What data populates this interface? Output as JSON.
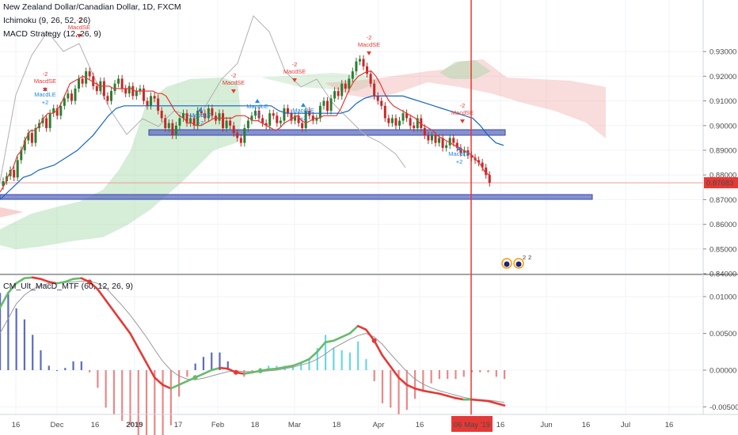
{
  "header": {
    "title": "New Zealand Dollar/Canadian Dollar, 1D, FXCM",
    "indicator_1": "Ichimoku (9, 26, 52, 26)",
    "indicator_2": "MACD Strategy (12, 26, 9)",
    "indicator_3": "CM_Ult_MacD_MTF (60, 12, 26, 9)"
  },
  "colors": {
    "candle_up": "#2e7d32",
    "candle_down": "#c62828",
    "conversion_line": "#e53935",
    "base_line": "#1565c0",
    "lagging_span": "#b0b0b0",
    "cloud_bull": "#a5d6a7",
    "cloud_bear": "#ef9a9a",
    "support_band": "#5c6bc0",
    "cursor": "#e53935",
    "signal_le": "#1e88e5",
    "signal_se": "#e53935",
    "macd_up": "#66bb6a",
    "macd_down": "#e53935",
    "macd_signal": "#999999"
  },
  "chart_data": [
    {
      "type": "candlestick",
      "name_label": "New Zealand Dollar/Canadian Dollar, 1D, FXCM",
      "y_ticks": [
        "0.93000",
        "0.92000",
        "0.91000",
        "0.90000",
        "0.89000",
        "0.88000",
        "0.87000",
        "0.86000",
        "0.85000",
        "0.84000"
      ],
      "y_range": [
        0.838,
        0.934
      ],
      "last_price": "0.87683",
      "close": [
        0.8775,
        0.8795,
        0.882,
        0.879,
        0.886,
        0.89,
        0.894,
        0.897,
        0.893,
        0.899,
        0.901,
        0.903,
        0.899,
        0.905,
        0.907,
        0.904,
        0.908,
        0.911,
        0.913,
        0.91,
        0.915,
        0.919,
        0.917,
        0.922,
        0.92,
        0.916,
        0.914,
        0.918,
        0.912,
        0.91,
        0.914,
        0.917,
        0.919,
        0.915,
        0.913,
        0.916,
        0.912,
        0.914,
        0.915,
        0.91,
        0.908,
        0.912,
        0.911,
        0.906,
        0.903,
        0.899,
        0.901,
        0.896,
        0.9,
        0.903,
        0.905,
        0.901,
        0.903,
        0.9,
        0.906,
        0.905,
        0.903,
        0.907,
        0.904,
        0.902,
        0.905,
        0.899,
        0.902,
        0.9,
        0.897,
        0.895,
        0.893,
        0.899,
        0.902,
        0.904,
        0.906,
        0.903,
        0.901,
        0.9,
        0.905,
        0.904,
        0.901,
        0.902,
        0.907,
        0.905,
        0.902,
        0.904,
        0.901,
        0.899,
        0.906,
        0.904,
        0.902,
        0.903,
        0.908,
        0.91,
        0.906,
        0.911,
        0.914,
        0.912,
        0.917,
        0.915,
        0.919,
        0.922,
        0.926,
        0.927,
        0.924,
        0.921,
        0.917,
        0.912,
        0.91,
        0.908,
        0.903,
        0.901,
        0.903,
        0.9,
        0.902,
        0.905,
        0.903,
        0.9,
        0.899,
        0.903,
        0.899,
        0.896,
        0.894,
        0.896,
        0.893,
        0.895,
        0.891,
        0.892,
        0.895,
        0.893,
        0.891,
        0.889,
        0.89,
        0.888,
        0.887,
        0.886,
        0.885,
        0.883,
        0.88,
        0.8768
      ],
      "conversion_line": [
        0.873,
        0.876,
        0.88,
        0.883,
        0.888,
        0.89,
        0.895,
        0.898,
        0.898,
        0.9,
        0.903,
        0.905,
        0.905,
        0.906,
        0.909,
        0.913,
        0.917,
        0.918,
        0.919,
        0.92,
        0.919,
        0.918,
        0.917,
        0.916,
        0.916,
        0.916,
        0.915,
        0.915,
        0.915,
        0.915,
        0.915,
        0.914,
        0.914,
        0.914,
        0.914,
        0.914,
        0.913,
        0.913,
        0.912,
        0.909,
        0.906,
        0.904,
        0.903,
        0.901,
        0.901,
        0.9,
        0.9,
        0.901,
        0.902,
        0.903,
        0.903,
        0.903,
        0.903,
        0.903,
        0.904,
        0.904,
        0.904,
        0.903,
        0.902,
        0.902,
        0.901,
        0.9,
        0.899,
        0.898,
        0.899,
        0.901,
        0.902,
        0.903,
        0.904,
        0.902,
        0.901,
        0.902,
        0.903,
        0.903,
        0.904,
        0.904,
        0.904,
        0.904,
        0.907,
        0.911,
        0.915,
        0.918,
        0.92,
        0.921,
        0.922,
        0.922,
        0.92,
        0.917,
        0.913,
        0.91,
        0.908,
        0.907,
        0.906,
        0.905,
        0.904,
        0.903,
        0.901,
        0.9,
        0.899,
        0.898,
        0.896,
        0.895,
        0.894,
        0.893,
        0.892,
        0.891,
        0.89,
        0.889,
        0.888,
        0.886,
        0.884,
        0.881,
        0.88
      ],
      "base_line": [
        0.87,
        0.873,
        0.876,
        0.879,
        0.88,
        0.882,
        0.883,
        0.884,
        0.886,
        0.888,
        0.89,
        0.893,
        0.896,
        0.9,
        0.904,
        0.907,
        0.908,
        0.908,
        0.908,
        0.908,
        0.908,
        0.908,
        0.908,
        0.908,
        0.908,
        0.908,
        0.908,
        0.908,
        0.908,
        0.908,
        0.908,
        0.908,
        0.908,
        0.908,
        0.908,
        0.908,
        0.906,
        0.905,
        0.905,
        0.905,
        0.905,
        0.905,
        0.905,
        0.905,
        0.905,
        0.906,
        0.909,
        0.911,
        0.912,
        0.912,
        0.912,
        0.912,
        0.912,
        0.911,
        0.91,
        0.909,
        0.908,
        0.907,
        0.906,
        0.905,
        0.904,
        0.903,
        0.9,
        0.896,
        0.893,
        0.892
      ]
    },
    {
      "type": "macd",
      "name_label": "CM_Ult_MacD_MTF (60, 12, 26, 9)",
      "y_ticks": [
        "0.01000",
        "0.00500",
        "0.00000",
        "-0.00500"
      ],
      "y_range": [
        -0.0062,
        0.0145
      ],
      "macd": [
        0.0085,
        0.0105,
        0.0118,
        0.0125,
        0.0126,
        0.0124,
        0.012,
        0.0118,
        0.012,
        0.0124,
        0.0125,
        0.012,
        0.011,
        0.0095,
        0.008,
        0.0065,
        0.005,
        0.003,
        0.001,
        -0.001,
        -0.002,
        -0.0025,
        -0.002,
        -0.0015,
        -0.001,
        -0.0005,
        0.0,
        0.0003,
        0.0002,
        -0.0003,
        -0.0005,
        -0.0003,
        -0.0001,
        0.0001,
        0.0002,
        0.0004,
        0.0006,
        0.001,
        0.0015,
        0.0025,
        0.0038,
        0.004,
        0.0045,
        0.005,
        0.006,
        0.0055,
        0.004,
        0.002,
        0.0005,
        -0.001,
        -0.002,
        -0.0025,
        -0.0028,
        -0.003,
        -0.0032,
        -0.0035,
        -0.0038,
        -0.004,
        -0.004,
        -0.0041,
        -0.0042,
        -0.0045,
        -0.0048
      ],
      "signal": [
        0.005,
        0.007,
        0.009,
        0.0102,
        0.011,
        0.0115,
        0.0118,
        0.0118,
        0.0119,
        0.012,
        0.0121,
        0.0121,
        0.0118,
        0.0112,
        0.01,
        0.0088,
        0.0075,
        0.006,
        0.0045,
        0.0028,
        0.0012,
        0.0,
        -0.0008,
        -0.0012,
        -0.0013,
        -0.0011,
        -0.0008,
        -0.0005,
        -0.0002,
        -0.0001,
        -0.0002,
        -0.0002,
        -0.0002,
        -0.0001,
        0.0,
        0.0002,
        0.0004,
        0.0007,
        0.001,
        0.0015,
        0.0022,
        0.003,
        0.0036,
        0.0042,
        0.0047,
        0.005,
        0.0045,
        0.0035,
        0.0022,
        0.001,
        -0.0002,
        -0.0012,
        -0.0019,
        -0.0024,
        -0.0028,
        -0.0031,
        -0.0034,
        -0.0037,
        -0.0039,
        -0.004,
        -0.0041,
        -0.0042,
        -0.0044
      ]
    }
  ],
  "signals": {
    "macd_le": "MacdLE",
    "macd_se": "MacdSE",
    "plus2": "+2",
    "minus2": "-2",
    "macd_le_x": [
      "Nov 26",
      "Jan 22",
      "Feb 14",
      "Mar 4",
      "Mar 6",
      "May 3"
    ],
    "macd_se_x": [
      "Nov 27",
      "Dec 7",
      "Feb 12",
      "Feb 20",
      "Mar 3",
      "Mar 29",
      "May 1"
    ]
  },
  "x_axis_labels": [
    "16",
    "Dec",
    "16",
    "2019",
    "17",
    "Feb",
    "18",
    "Mar",
    "18",
    "Apr",
    "16",
    "16",
    "Jun",
    "16",
    "Jul",
    "16"
  ],
  "cursor": {
    "date_label": "06 May '19"
  }
}
